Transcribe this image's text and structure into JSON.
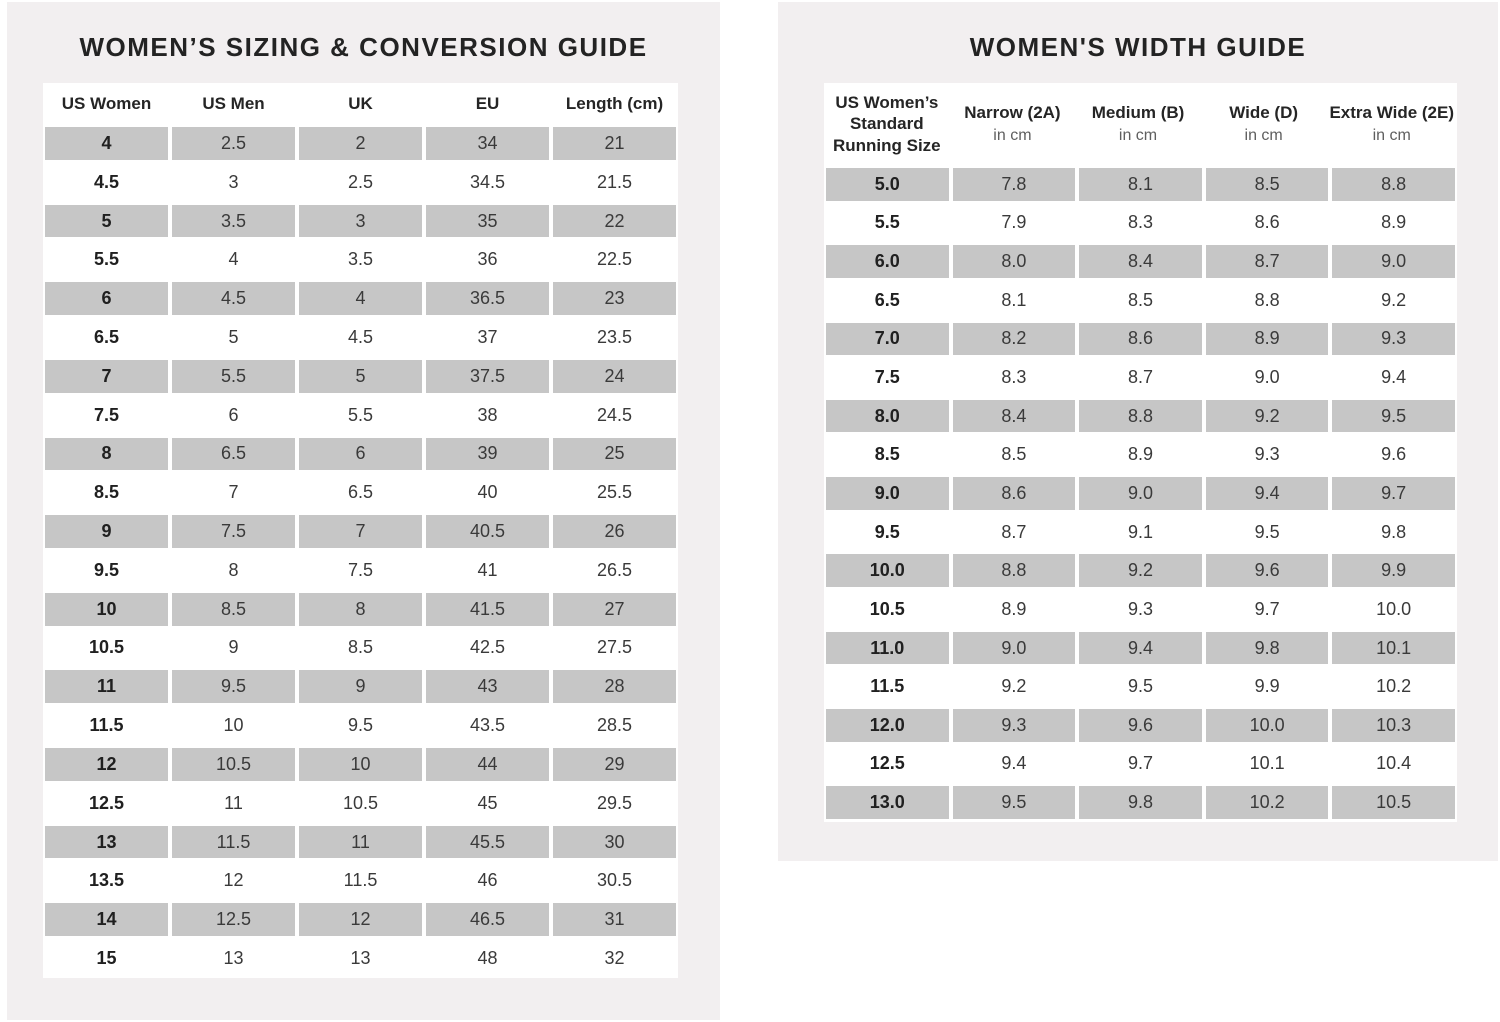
{
  "colors": {
    "panel_bg": "#f2eff0",
    "table_bg": "#ffffff",
    "row_alt_bg": "#c6c6c6",
    "title_text": "#232323",
    "header_text": "#252525",
    "subheader_text": "#5f5f5f",
    "value_text": "#3a3a3a",
    "first_col_text": "#202020"
  },
  "chart_data": [
    {
      "type": "table",
      "title": "WOMEN’S SIZING & CONVERSION GUIDE",
      "columns": [
        "US Women",
        "US Men",
        "UK",
        "EU",
        "Length (cm)"
      ],
      "rows": [
        [
          "4",
          "2.5",
          "2",
          "34",
          "21"
        ],
        [
          "4.5",
          "3",
          "2.5",
          "34.5",
          "21.5"
        ],
        [
          "5",
          "3.5",
          "3",
          "35",
          "22"
        ],
        [
          "5.5",
          "4",
          "3.5",
          "36",
          "22.5"
        ],
        [
          "6",
          "4.5",
          "4",
          "36.5",
          "23"
        ],
        [
          "6.5",
          "5",
          "4.5",
          "37",
          "23.5"
        ],
        [
          "7",
          "5.5",
          "5",
          "37.5",
          "24"
        ],
        [
          "7.5",
          "6",
          "5.5",
          "38",
          "24.5"
        ],
        [
          "8",
          "6.5",
          "6",
          "39",
          "25"
        ],
        [
          "8.5",
          "7",
          "6.5",
          "40",
          "25.5"
        ],
        [
          "9",
          "7.5",
          "7",
          "40.5",
          "26"
        ],
        [
          "9.5",
          "8",
          "7.5",
          "41",
          "26.5"
        ],
        [
          "10",
          "8.5",
          "8",
          "41.5",
          "27"
        ],
        [
          "10.5",
          "9",
          "8.5",
          "42.5",
          "27.5"
        ],
        [
          "11",
          "9.5",
          "9",
          "43",
          "28"
        ],
        [
          "11.5",
          "10",
          "9.5",
          "43.5",
          "28.5"
        ],
        [
          "12",
          "10.5",
          "10",
          "44",
          "29"
        ],
        [
          "12.5",
          "11",
          "10.5",
          "45",
          "29.5"
        ],
        [
          "13",
          "11.5",
          "11",
          "45.5",
          "30"
        ],
        [
          "13.5",
          "12",
          "11.5",
          "46",
          "30.5"
        ],
        [
          "14",
          "12.5",
          "12",
          "46.5",
          "31"
        ],
        [
          "15",
          "13",
          "13",
          "48",
          "32"
        ]
      ]
    },
    {
      "type": "table",
      "title": "WOMEN'S WIDTH GUIDE",
      "columns": [
        {
          "label": "US Women’s Standard Running Size",
          "sub": ""
        },
        {
          "label": "Narrow (2A)",
          "sub": "in cm"
        },
        {
          "label": "Medium (B)",
          "sub": "in cm"
        },
        {
          "label": "Wide (D)",
          "sub": "in cm"
        },
        {
          "label": "Extra Wide (2E)",
          "sub": "in cm"
        }
      ],
      "rows": [
        [
          "5.0",
          "7.8",
          "8.1",
          "8.5",
          "8.8"
        ],
        [
          "5.5",
          "7.9",
          "8.3",
          "8.6",
          "8.9"
        ],
        [
          "6.0",
          "8.0",
          "8.4",
          "8.7",
          "9.0"
        ],
        [
          "6.5",
          "8.1",
          "8.5",
          "8.8",
          "9.2"
        ],
        [
          "7.0",
          "8.2",
          "8.6",
          "8.9",
          "9.3"
        ],
        [
          "7.5",
          "8.3",
          "8.7",
          "9.0",
          "9.4"
        ],
        [
          "8.0",
          "8.4",
          "8.8",
          "9.2",
          "9.5"
        ],
        [
          "8.5",
          "8.5",
          "8.9",
          "9.3",
          "9.6"
        ],
        [
          "9.0",
          "8.6",
          "9.0",
          "9.4",
          "9.7"
        ],
        [
          "9.5",
          "8.7",
          "9.1",
          "9.5",
          "9.8"
        ],
        [
          "10.0",
          "8.8",
          "9.2",
          "9.6",
          "9.9"
        ],
        [
          "10.5",
          "8.9",
          "9.3",
          "9.7",
          "10.0"
        ],
        [
          "11.0",
          "9.0",
          "9.4",
          "9.8",
          "10.1"
        ],
        [
          "11.5",
          "9.2",
          "9.5",
          "9.9",
          "10.2"
        ],
        [
          "12.0",
          "9.3",
          "9.6",
          "10.0",
          "10.3"
        ],
        [
          "12.5",
          "9.4",
          "9.7",
          "10.1",
          "10.4"
        ],
        [
          "13.0",
          "9.5",
          "9.8",
          "10.2",
          "10.5"
        ]
      ]
    }
  ]
}
